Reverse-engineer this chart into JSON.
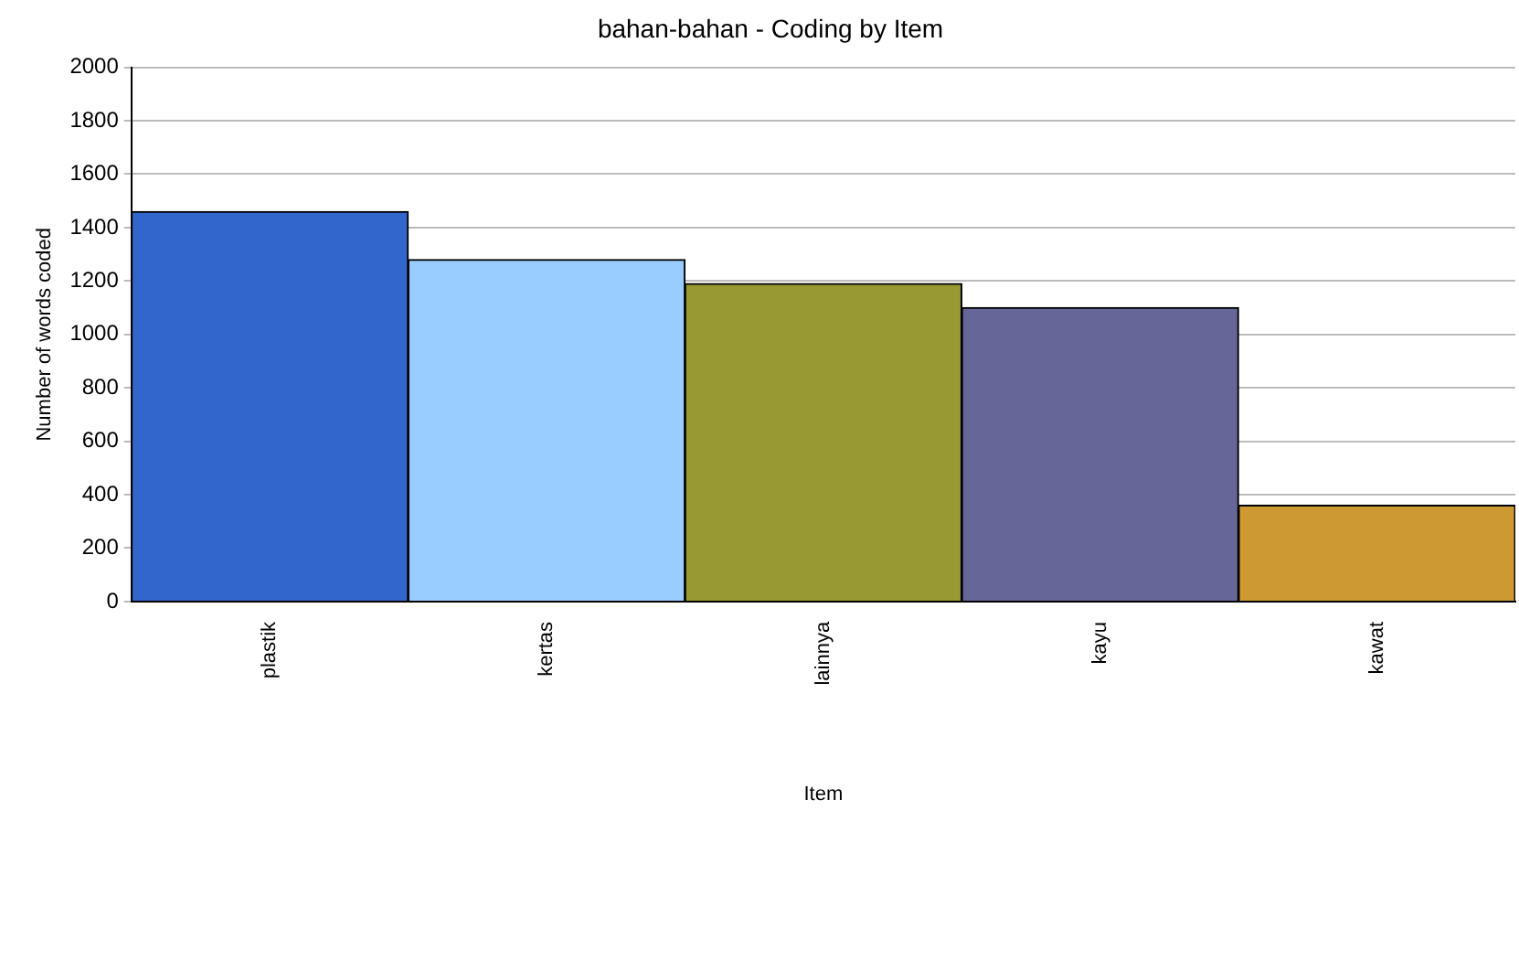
{
  "chart_data": {
    "type": "bar",
    "title": "bahan-bahan - Coding by Item",
    "xlabel": "Item",
    "ylabel": "Number of words coded",
    "categories": [
      "plastik",
      "kertas",
      "lainnya",
      "kayu",
      "kawat"
    ],
    "values": [
      1460,
      1280,
      1190,
      1100,
      360
    ],
    "colors": [
      "#3366cc",
      "#99ccff",
      "#999933",
      "#666699",
      "#cc9933"
    ],
    "ylim": [
      0,
      2000
    ],
    "yticks": [
      0,
      200,
      400,
      600,
      800,
      1000,
      1200,
      1400,
      1600,
      1800,
      2000
    ],
    "grid": "y"
  }
}
